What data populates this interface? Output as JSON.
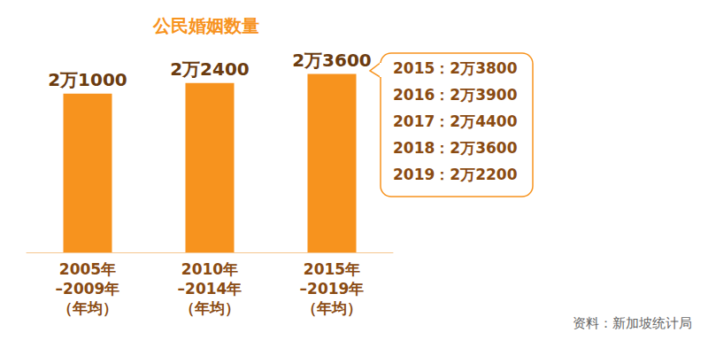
{
  "chart_data": {
    "type": "bar",
    "title": "公民婚姻数量",
    "categories": [
      "2005年\n–2009年\n（年均）",
      "2010年\n–2014年\n（年均）",
      "2015年\n–2019年\n（年均）"
    ],
    "values": [
      21000,
      22400,
      23600
    ],
    "value_labels": [
      "2万1000",
      "2万2400",
      "2万3600"
    ],
    "color": "#f7931e",
    "ylim": [
      0,
      30000
    ],
    "grid": false,
    "tick_labels": "x",
    "data_labels": true,
    "annotation": [
      "2015：2万3800",
      "2016：2万3900",
      "2017：2万4400",
      "2018：2万3600",
      "2019：2万2200"
    ],
    "source": "资料：新加坡统计局"
  }
}
